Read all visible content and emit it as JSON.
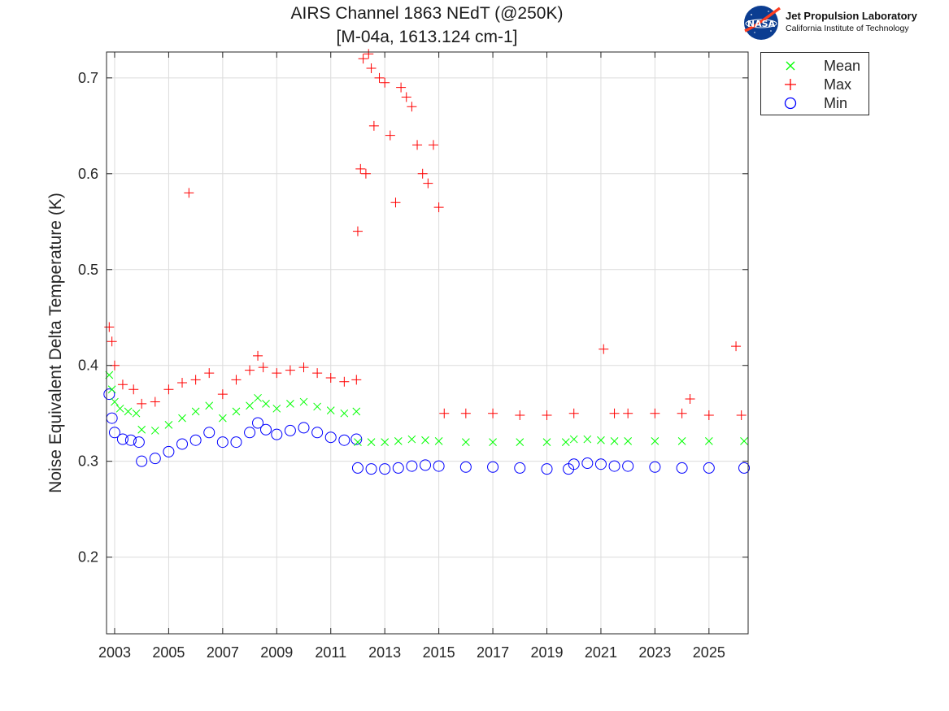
{
  "header": {
    "title_line1": "AIRS Channel 1863 NEdT (@250K)",
    "title_line2": "[M-04a, 1613.124 cm-1]"
  },
  "logo": {
    "badge_text": "NASA",
    "name": "Jet Propulsion Laboratory",
    "subtitle": "California Institute of Technology"
  },
  "chart_data": {
    "type": "scatter",
    "title": "AIRS Channel 1863 NEdT (@250K) [M-04a, 1613.124 cm-1]",
    "xlabel": "",
    "ylabel": "Noise Equivalent Delta Temperature (K)",
    "xlim": [
      2002.7,
      2026.45
    ],
    "ylim": [
      0.12,
      0.727
    ],
    "xticks": [
      2003,
      2005,
      2007,
      2009,
      2011,
      2013,
      2015,
      2017,
      2019,
      2021,
      2023,
      2025
    ],
    "yticks": [
      0.2,
      0.3,
      0.4,
      0.5,
      0.6,
      0.7
    ],
    "grid": true,
    "legend_position": "outside-top-right",
    "series": [
      {
        "name": "Mean",
        "marker": "x",
        "color": "#00ff00",
        "x": [
          2002.8,
          2002.9,
          2003.0,
          2003.2,
          2003.5,
          2003.8,
          2004.0,
          2004.5,
          2005.0,
          2005.5,
          2006.0,
          2006.5,
          2007.0,
          2007.5,
          2008.0,
          2008.3,
          2008.6,
          2009.0,
          2009.5,
          2010.0,
          2010.5,
          2011.0,
          2011.5,
          2011.95,
          2012.0,
          2012.5,
          2013.0,
          2013.5,
          2014.0,
          2014.5,
          2015.0,
          2016.0,
          2017.0,
          2018.0,
          2019.0,
          2019.7,
          2020.0,
          2020.5,
          2021.0,
          2021.5,
          2022.0,
          2023.0,
          2024.0,
          2025.0,
          2026.3
        ],
        "y": [
          0.39,
          0.375,
          0.362,
          0.355,
          0.352,
          0.35,
          0.333,
          0.332,
          0.338,
          0.345,
          0.352,
          0.358,
          0.345,
          0.352,
          0.358,
          0.366,
          0.36,
          0.355,
          0.36,
          0.362,
          0.357,
          0.353,
          0.35,
          0.352,
          0.32,
          0.32,
          0.32,
          0.321,
          0.323,
          0.322,
          0.321,
          0.32,
          0.32,
          0.32,
          0.32,
          0.32,
          0.323,
          0.323,
          0.322,
          0.321,
          0.321,
          0.321,
          0.321,
          0.321,
          0.321
        ]
      },
      {
        "name": "Max",
        "marker": "+",
        "color": "#ff0000",
        "x": [
          2002.8,
          2002.9,
          2003.0,
          2003.3,
          2003.7,
          2004.0,
          2004.5,
          2005.0,
          2005.5,
          2005.75,
          2006.0,
          2006.5,
          2007.0,
          2007.5,
          2008.0,
          2008.3,
          2008.5,
          2009.0,
          2009.5,
          2010.0,
          2010.5,
          2011.0,
          2011.5,
          2011.95,
          2012.0,
          2012.1,
          2012.2,
          2012.3,
          2012.4,
          2012.5,
          2012.6,
          2012.8,
          2013.0,
          2013.2,
          2013.4,
          2013.6,
          2013.8,
          2014.0,
          2014.2,
          2014.4,
          2014.6,
          2014.8,
          2015.0,
          2015.2,
          2016.0,
          2017.0,
          2018.0,
          2019.0,
          2020.0,
          2021.1,
          2021.5,
          2022.0,
          2023.0,
          2024.0,
          2024.3,
          2025.0,
          2026.0,
          2026.2
        ],
        "y": [
          0.44,
          0.425,
          0.4,
          0.38,
          0.375,
          0.36,
          0.362,
          0.375,
          0.382,
          0.58,
          0.385,
          0.392,
          0.37,
          0.385,
          0.395,
          0.41,
          0.398,
          0.392,
          0.395,
          0.398,
          0.392,
          0.387,
          0.383,
          0.385,
          0.54,
          0.605,
          0.72,
          0.6,
          0.725,
          0.71,
          0.65,
          0.7,
          0.695,
          0.64,
          0.57,
          0.69,
          0.68,
          0.67,
          0.63,
          0.6,
          0.59,
          0.63,
          0.565,
          0.35,
          0.35,
          0.35,
          0.348,
          0.348,
          0.35,
          0.417,
          0.35,
          0.35,
          0.35,
          0.35,
          0.365,
          0.348,
          0.42,
          0.348
        ]
      },
      {
        "name": "Min",
        "marker": "o",
        "color": "#0000ff",
        "x": [
          2002.8,
          2002.9,
          2003.0,
          2003.3,
          2003.6,
          2003.9,
          2004.0,
          2004.5,
          2005.0,
          2005.5,
          2006.0,
          2006.5,
          2007.0,
          2007.5,
          2008.0,
          2008.3,
          2008.6,
          2009.0,
          2009.5,
          2010.0,
          2010.5,
          2011.0,
          2011.5,
          2011.95,
          2012.0,
          2012.5,
          2013.0,
          2013.5,
          2014.0,
          2014.5,
          2015.0,
          2016.0,
          2017.0,
          2018.0,
          2019.0,
          2019.8,
          2020.0,
          2020.5,
          2021.0,
          2021.5,
          2022.0,
          2023.0,
          2024.0,
          2025.0,
          2026.3
        ],
        "y": [
          0.37,
          0.345,
          0.33,
          0.323,
          0.322,
          0.32,
          0.3,
          0.303,
          0.31,
          0.318,
          0.322,
          0.33,
          0.32,
          0.32,
          0.33,
          0.34,
          0.333,
          0.328,
          0.332,
          0.335,
          0.33,
          0.325,
          0.322,
          0.323,
          0.293,
          0.292,
          0.292,
          0.293,
          0.295,
          0.296,
          0.295,
          0.294,
          0.294,
          0.293,
          0.292,
          0.292,
          0.297,
          0.298,
          0.297,
          0.295,
          0.295,
          0.294,
          0.293,
          0.293,
          0.293
        ]
      }
    ]
  },
  "colors": {
    "mean": "#00ff00",
    "max": "#ff0000",
    "min": "#0000ff",
    "grid": "#dcdcdc",
    "axis": "#262626",
    "nasa_blue": "#0b3d91",
    "nasa_red": "#fc3d21"
  }
}
